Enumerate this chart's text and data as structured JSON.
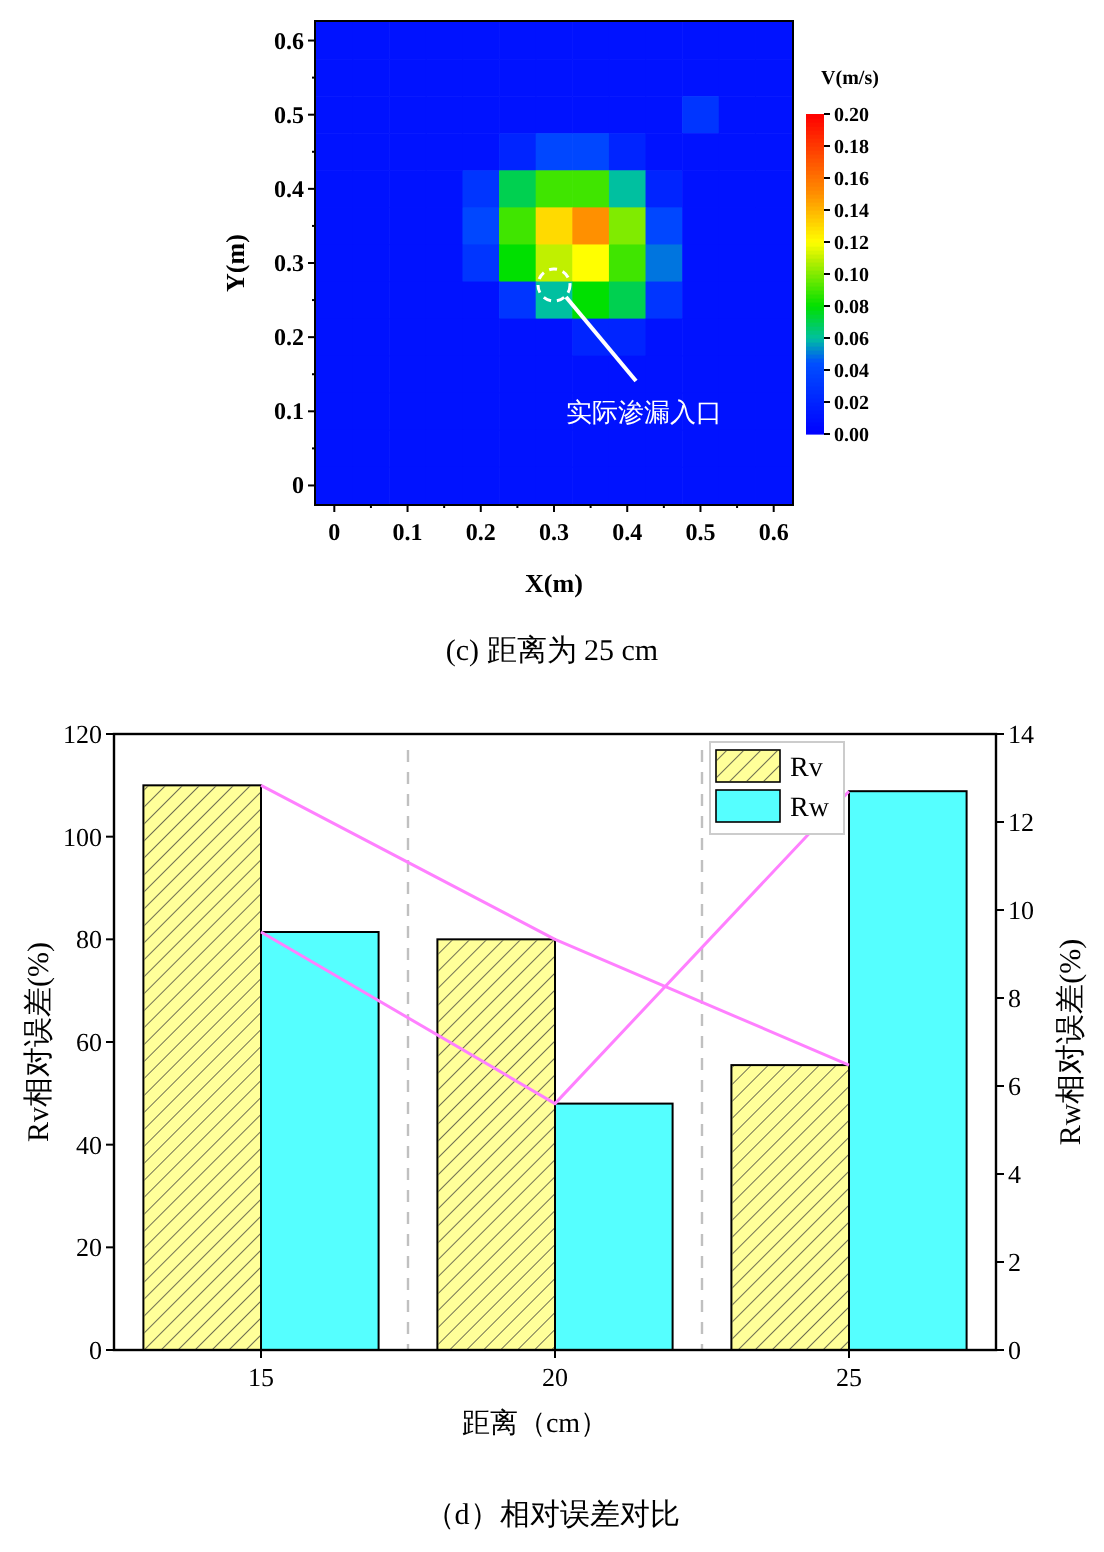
{
  "chart_data": [
    {
      "type": "heatmap",
      "title": "(c) 距离为 25 cm",
      "xlabel": "X(m)",
      "ylabel": "Y(m)",
      "clabel": "V(m/s)",
      "categories": [
        "0",
        null,
        "0.1",
        null,
        "0.2",
        null,
        "0.3",
        null,
        "0.4",
        null,
        "0.5",
        null,
        "0.6"
      ],
      "y_categories": [
        "0.6",
        null,
        "0.5",
        null,
        "0.4",
        null,
        "0.3",
        null,
        "0.2",
        null,
        "0.1",
        null,
        "0"
      ],
      "cells": [
        [
          0.01,
          0.01,
          0.01,
          0.01,
          0.01,
          0.01,
          0.01,
          0.01,
          0.01,
          0.01,
          0.01,
          0.01,
          0.01
        ],
        [
          0.01,
          0.01,
          0.01,
          0.01,
          0.01,
          0.01,
          0.01,
          0.01,
          0.01,
          0.01,
          0.01,
          0.01,
          0.01
        ],
        [
          0.01,
          0.01,
          0.01,
          0.01,
          0.01,
          0.01,
          0.01,
          0.01,
          0.01,
          0.01,
          0.03,
          0.01,
          0.01
        ],
        [
          0.01,
          0.01,
          0.01,
          0.01,
          0.01,
          0.02,
          0.04,
          0.04,
          0.02,
          0.01,
          0.01,
          0.01,
          0.01
        ],
        [
          0.01,
          0.01,
          0.01,
          0.01,
          0.03,
          0.07,
          0.09,
          0.09,
          0.06,
          0.02,
          0.01,
          0.01,
          0.01
        ],
        [
          0.01,
          0.01,
          0.01,
          0.01,
          0.04,
          0.09,
          0.13,
          0.15,
          0.1,
          0.04,
          0.01,
          0.01,
          0.01
        ],
        [
          0.01,
          0.01,
          0.01,
          0.01,
          0.03,
          0.08,
          0.11,
          0.12,
          0.09,
          0.05,
          0.01,
          0.01,
          0.01
        ],
        [
          0.01,
          0.01,
          0.01,
          0.01,
          0.01,
          0.03,
          0.06,
          0.08,
          0.07,
          0.03,
          0.01,
          0.01,
          0.01
        ],
        [
          0.01,
          0.01,
          0.01,
          0.01,
          0.01,
          0.01,
          0.01,
          0.02,
          0.02,
          0.01,
          0.01,
          0.01,
          0.01
        ],
        [
          0.01,
          0.01,
          0.01,
          0.01,
          0.01,
          0.01,
          0.01,
          0.01,
          0.01,
          0.01,
          0.01,
          0.01,
          0.01
        ],
        [
          0.01,
          0.01,
          0.01,
          0.01,
          0.01,
          0.01,
          0.01,
          0.01,
          0.01,
          0.01,
          0.01,
          0.01,
          0.01
        ],
        [
          0.01,
          0.01,
          0.01,
          0.01,
          0.01,
          0.01,
          0.01,
          0.01,
          0.01,
          0.01,
          0.01,
          0.01,
          0.01
        ],
        [
          0.01,
          0.01,
          0.01,
          0.01,
          0.01,
          0.01,
          0.01,
          0.01,
          0.01,
          0.01,
          0.01,
          0.01,
          0.01
        ]
      ],
      "clim": [
        0,
        0.2
      ],
      "cticks": [
        {
          "value": 0,
          "label": "0.00"
        },
        {
          "value": 0.02,
          "label": "0.02"
        },
        {
          "value": 0.04,
          "label": "0.04"
        },
        {
          "value": 0.06,
          "label": "0.06"
        },
        {
          "value": 0.08,
          "label": "0.08"
        },
        {
          "value": 0.1,
          "label": "0.10"
        },
        {
          "value": 0.12,
          "label": "0.12"
        },
        {
          "value": 0.14,
          "label": "0.14"
        },
        {
          "value": 0.16,
          "label": "0.16"
        },
        {
          "value": 0.18,
          "label": "0.18"
        },
        {
          "value": 0.2,
          "label": "0.20"
        }
      ],
      "annotations": [
        "实际渗漏入口"
      ]
    },
    {
      "type": "bar",
      "title": "（d）相对误差对比",
      "xlabel": "距离（cm）",
      "ylabel": "Rv相对误差(%)",
      "y2label": "Rw相对误差(%)",
      "categories": [
        "15",
        "20",
        "25"
      ],
      "series": [
        {
          "name": "Rv",
          "color": "#ffff99",
          "values": [
            110,
            80,
            55.5
          ]
        },
        {
          "name": "Rw",
          "color": "#55ffff",
          "values": [
            9.5,
            5.6,
            12.7
          ],
          "axis": "y2"
        },
        {
          "type": "line",
          "color": "#ff80ff",
          "values": [
            110,
            80,
            55.5
          ]
        },
        {
          "type": "line",
          "color": "#ff80ff",
          "values": [
            9.5,
            5.6,
            12.7
          ],
          "axis": "y2"
        }
      ],
      "ylim": [
        0,
        120
      ],
      "yticks": [
        0,
        20,
        40,
        60,
        80,
        100,
        120
      ],
      "y2lim": [
        0,
        14
      ],
      "y2ticks": [
        0,
        2,
        4,
        6,
        8,
        10,
        12,
        14
      ],
      "legend": "top right"
    }
  ]
}
